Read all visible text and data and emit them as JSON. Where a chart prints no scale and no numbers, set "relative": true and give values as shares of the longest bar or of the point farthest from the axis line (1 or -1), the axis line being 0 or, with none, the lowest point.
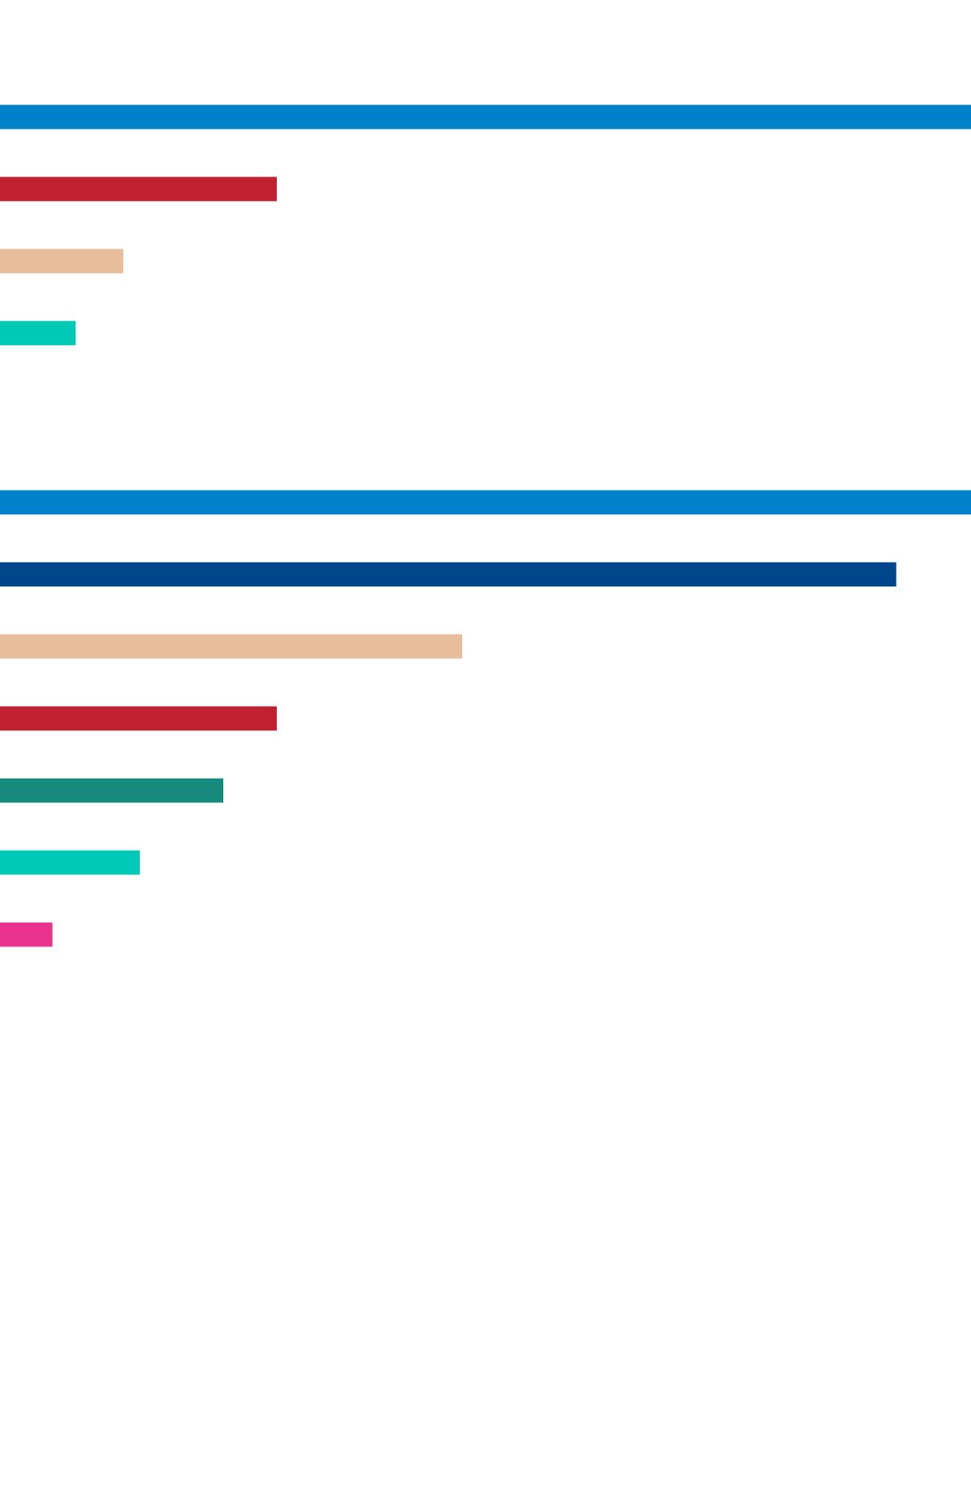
{
  "chart_data": [
    {
      "type": "bar",
      "orientation": "horizontal",
      "relative": true,
      "categories": [
        null,
        null,
        null,
        null
      ],
      "values": [
        1,
        0.285,
        0.127,
        0.078
      ],
      "colors": [
        "#0082ca",
        "#c0202f",
        "#e8bd9c",
        "#00c9b7"
      ]
    },
    {
      "type": "bar",
      "orientation": "horizontal",
      "relative": true,
      "categories": [
        null,
        null,
        null,
        null,
        null,
        null,
        null
      ],
      "values": [
        1,
        0.923,
        0.476,
        0.285,
        0.23,
        0.144,
        0.054
      ],
      "colors": [
        "#0082ca",
        "#00468b",
        "#e8bd9c",
        "#c0202f",
        "#178a7e",
        "#00c9b7",
        "#e9338f"
      ]
    }
  ]
}
